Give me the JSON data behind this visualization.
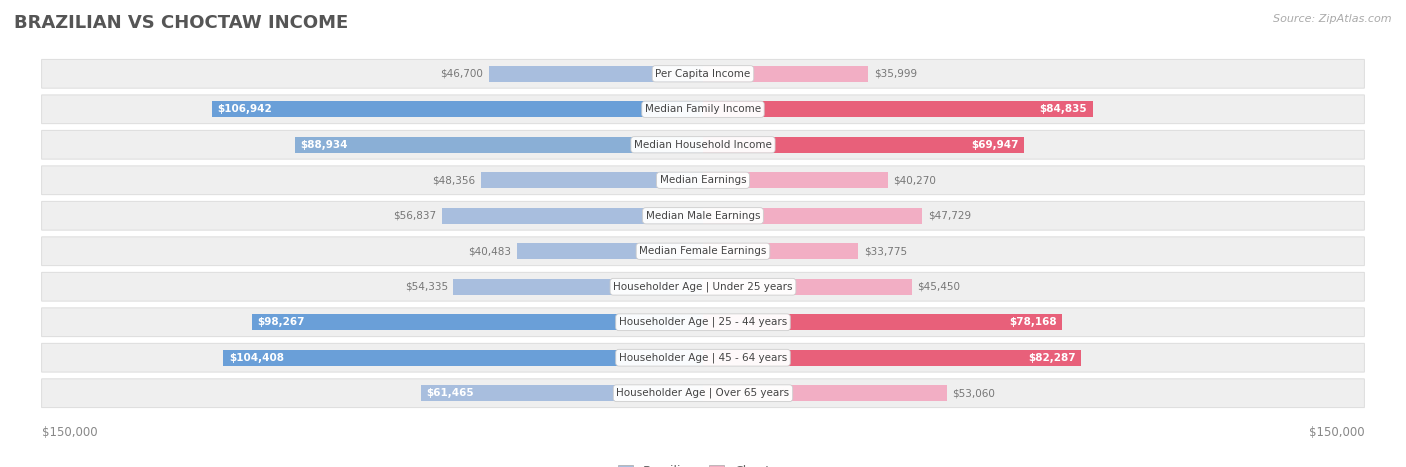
{
  "title": "BRAZILIAN VS CHOCTAW INCOME",
  "source": "Source: ZipAtlas.com",
  "categories": [
    "Per Capita Income",
    "Median Family Income",
    "Median Household Income",
    "Median Earnings",
    "Median Male Earnings",
    "Median Female Earnings",
    "Householder Age | Under 25 years",
    "Householder Age | 25 - 44 years",
    "Householder Age | 45 - 64 years",
    "Householder Age | Over 65 years"
  ],
  "brazilian_values": [
    46700,
    106942,
    88934,
    48356,
    56837,
    40483,
    54335,
    98267,
    104408,
    61465
  ],
  "choctaw_values": [
    35999,
    84835,
    69947,
    40270,
    47729,
    33775,
    45450,
    78168,
    82287,
    53060
  ],
  "max_val": 150000,
  "brazilian_colors": [
    "#a8bede",
    "#6a9fd8",
    "#8aafd6",
    "#a8bede",
    "#a8bede",
    "#a8bede",
    "#a8bede",
    "#6a9fd8",
    "#6a9fd8",
    "#a8bede"
  ],
  "choctaw_colors": [
    "#f2aec4",
    "#e8607a",
    "#e8607a",
    "#f2aec4",
    "#f2aec4",
    "#f2aec4",
    "#f2aec4",
    "#e8607a",
    "#e8607a",
    "#f2aec4"
  ],
  "label_text_color_inside_braz": "#ffffff",
  "label_text_color_inside_choc": "#ffffff",
  "label_text_color_outside": "#888888",
  "bg_color": "#ffffff",
  "row_bg_color": "#efefef",
  "row_border_color": "#dddddd",
  "title_color": "#555555",
  "legend_brazilian": "Brazilian",
  "legend_choctaw": "Choctaw",
  "threshold_braz": 60000,
  "threshold_choc": 60000
}
